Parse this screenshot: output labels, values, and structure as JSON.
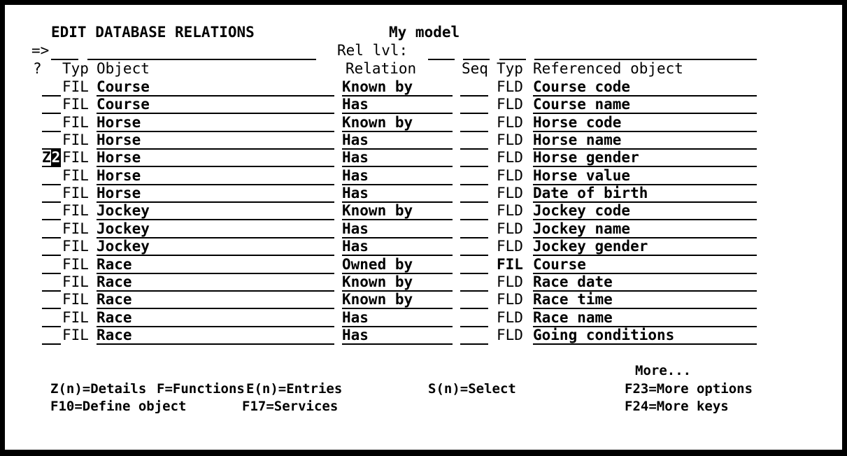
{
  "colors": {
    "foreground": "#000000",
    "background": "#ffffff"
  },
  "header": {
    "title": "EDIT DATABASE RELATIONS",
    "model_name": "My model",
    "command_prompt": "=>",
    "rel_lvl_label": "Rel lvl:"
  },
  "command_line": {
    "opt_value": "",
    "command_value": "",
    "rel_lvl_value": "",
    "seq_filter": "",
    "typ_filter": "",
    "ref_object_filter": ""
  },
  "table": {
    "headers": {
      "opt": "?",
      "typ": "Typ",
      "object": "Object",
      "relation": "Relation",
      "seq": "Seq",
      "ref_typ": "Typ",
      "ref_object": "Referenced object"
    },
    "rows": [
      {
        "opt": "",
        "typ": "FIL",
        "object": "Course",
        "relation": "Known by",
        "seq": "",
        "ref_typ": "FLD",
        "ref_typ_bold": false,
        "ref_object": "Course code"
      },
      {
        "opt": "",
        "typ": "FIL",
        "object": "Course",
        "relation": "Has",
        "seq": "",
        "ref_typ": "FLD",
        "ref_typ_bold": false,
        "ref_object": "Course name"
      },
      {
        "opt": "",
        "typ": "FIL",
        "object": "Horse",
        "relation": "Known by",
        "seq": "",
        "ref_typ": "FLD",
        "ref_typ_bold": false,
        "ref_object": "Horse code"
      },
      {
        "opt": "",
        "typ": "FIL",
        "object": "Horse",
        "relation": "Has",
        "seq": "",
        "ref_typ": "FLD",
        "ref_typ_bold": false,
        "ref_object": "Horse name"
      },
      {
        "opt": "Z2",
        "cursor_pos": 1,
        "typ": "FIL",
        "object": "Horse",
        "relation": "Has",
        "seq": "",
        "ref_typ": "FLD",
        "ref_typ_bold": false,
        "ref_object": "Horse gender"
      },
      {
        "opt": "",
        "typ": "FIL",
        "object": "Horse",
        "relation": "Has",
        "seq": "",
        "ref_typ": "FLD",
        "ref_typ_bold": false,
        "ref_object": "Horse value"
      },
      {
        "opt": "",
        "typ": "FIL",
        "object": "Horse",
        "relation": "Has",
        "seq": "",
        "ref_typ": "FLD",
        "ref_typ_bold": false,
        "ref_object": "Date of birth"
      },
      {
        "opt": "",
        "typ": "FIL",
        "object": "Jockey",
        "relation": "Known by",
        "seq": "",
        "ref_typ": "FLD",
        "ref_typ_bold": false,
        "ref_object": "Jockey code"
      },
      {
        "opt": "",
        "typ": "FIL",
        "object": "Jockey",
        "relation": "Has",
        "seq": "",
        "ref_typ": "FLD",
        "ref_typ_bold": false,
        "ref_object": "Jockey name"
      },
      {
        "opt": "",
        "typ": "FIL",
        "object": "Jockey",
        "relation": "Has",
        "seq": "",
        "ref_typ": "FLD",
        "ref_typ_bold": false,
        "ref_object": "Jockey gender"
      },
      {
        "opt": "",
        "typ": "FIL",
        "object": "Race",
        "relation": "Owned by",
        "seq": "",
        "ref_typ": "FIL",
        "ref_typ_bold": true,
        "ref_object": "Course"
      },
      {
        "opt": "",
        "typ": "FIL",
        "object": "Race",
        "relation": "Known by",
        "seq": "",
        "ref_typ": "FLD",
        "ref_typ_bold": false,
        "ref_object": "Race date"
      },
      {
        "opt": "",
        "typ": "FIL",
        "object": "Race",
        "relation": "Known by",
        "seq": "",
        "ref_typ": "FLD",
        "ref_typ_bold": false,
        "ref_object": "Race time"
      },
      {
        "opt": "",
        "typ": "FIL",
        "object": "Race",
        "relation": "Has",
        "seq": "",
        "ref_typ": "FLD",
        "ref_typ_bold": false,
        "ref_object": "Race name"
      },
      {
        "opt": "",
        "typ": "FIL",
        "object": "Race",
        "relation": "Has",
        "seq": "",
        "ref_typ": "FLD",
        "ref_typ_bold": false,
        "ref_object": "Going conditions"
      }
    ]
  },
  "footer": {
    "more": "More...",
    "options_line": [
      "Z(n)=Details",
      "F=Functions",
      "E(n)=Entries",
      "S(n)=Select",
      "F23=More options"
    ],
    "keys_line": [
      "F10=Define object",
      "F17=Services",
      "F24=More keys"
    ]
  }
}
